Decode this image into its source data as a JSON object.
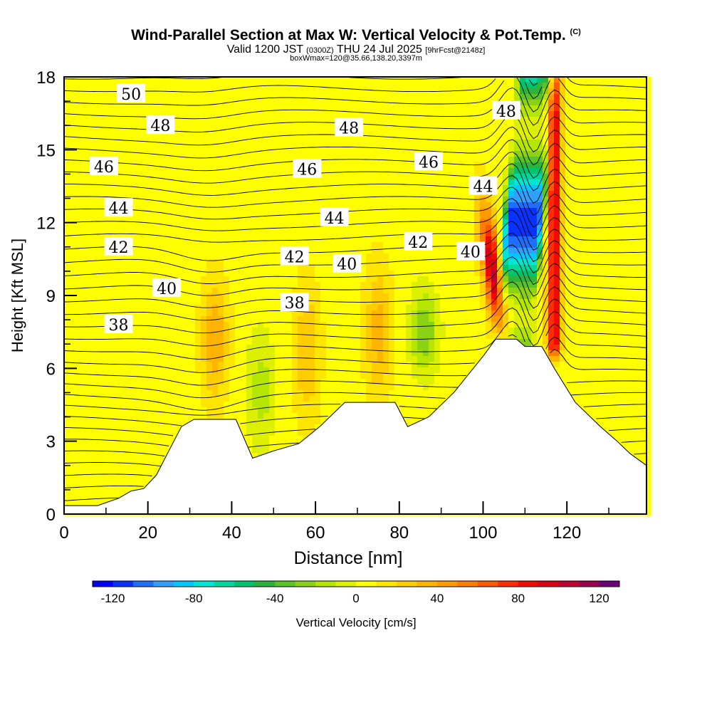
{
  "header": {
    "title": "Wind-Parallel Section at Max W: Vertical Velocity & Pot.Temp.",
    "copyright": "(C)",
    "valid_prefix": "Valid 1200 JST",
    "valid_utc": "(0300Z)",
    "valid_date": "THU 24 Jul 2025",
    "forecast": "[9hrFcst@2148z]",
    "box_info": "boxWmax=120@35.66,138.20,3397m"
  },
  "chart_data": {
    "type": "heatmap",
    "xlabel": "Distance [nm]",
    "ylabel": "Height [Kft MSL]",
    "xlim": [
      0,
      139
    ],
    "ylim": [
      0,
      18
    ],
    "x_ticks": [
      0,
      20,
      40,
      60,
      80,
      100,
      120
    ],
    "y_ticks": [
      0,
      3,
      6,
      9,
      12,
      15,
      18
    ],
    "colorbar": {
      "label": "Vertical Velocity [cm/s]",
      "range": [
        -130,
        130
      ],
      "tick_values": [
        -120,
        -80,
        -40,
        0,
        40,
        80,
        120
      ],
      "tick_labels": [
        "-120",
        "-80",
        "-40",
        "0",
        "40",
        "80",
        "120"
      ],
      "bin_edges": [
        -130,
        -120,
        -110,
        -100,
        -90,
        -80,
        -70,
        -60,
        -50,
        -40,
        -30,
        -20,
        -10,
        0,
        10,
        20,
        30,
        40,
        50,
        60,
        70,
        80,
        90,
        100,
        110,
        120,
        130
      ],
      "colors": [
        "#0000ff",
        "#0a32ff",
        "#1e6eff",
        "#2fa0ff",
        "#00c8ff",
        "#00e6d2",
        "#00d7a0",
        "#00c36e",
        "#2db43c",
        "#5ac328",
        "#8cd214",
        "#b4e600",
        "#dcf000",
        "#ffff00",
        "#ffe600",
        "#ffcd00",
        "#ffb400",
        "#ff9b00",
        "#ff7d00",
        "#ff5a00",
        "#ff2d00",
        "#f00a00",
        "#dc0014",
        "#be0032",
        "#9b0050",
        "#6e0078"
      ]
    },
    "terrain_kft": [
      [
        0,
        0.35
      ],
      [
        8,
        0.35
      ],
      [
        13,
        0.65
      ],
      [
        16,
        0.95
      ],
      [
        19,
        1.05
      ],
      [
        22,
        1.6
      ],
      [
        25,
        2.6
      ],
      [
        28,
        3.6
      ],
      [
        31,
        3.9
      ],
      [
        41,
        3.9
      ],
      [
        45,
        2.3
      ],
      [
        50,
        2.6
      ],
      [
        56,
        2.9
      ],
      [
        61,
        3.6
      ],
      [
        67,
        4.6
      ],
      [
        79,
        4.6
      ],
      [
        82,
        3.6
      ],
      [
        87,
        4.0
      ],
      [
        93,
        5.0
      ],
      [
        100,
        6.5
      ],
      [
        103,
        7.2
      ],
      [
        108,
        7.2
      ],
      [
        110,
        6.9
      ],
      [
        114,
        6.9
      ],
      [
        117,
        6.0
      ],
      [
        122,
        4.6
      ],
      [
        128,
        3.6
      ],
      [
        132,
        3.0
      ],
      [
        135,
        2.5
      ],
      [
        139,
        2.0
      ]
    ],
    "vertical_velocity_features": [
      {
        "x": 36,
        "y_range": [
          5,
          9.4
        ],
        "peak_cm_s": 35,
        "sign": "up"
      },
      {
        "x": 47,
        "y_range": [
          3,
          7.2
        ],
        "peak_cm_s": -20,
        "sign": "down"
      },
      {
        "x": 58,
        "y_range": [
          4,
          9.4
        ],
        "peak_cm_s": 25,
        "sign": "up"
      },
      {
        "x": 75,
        "y_range": [
          5,
          10
        ],
        "peak_cm_s": 30,
        "sign": "up"
      },
      {
        "x": 86,
        "y_range": [
          6,
          9
        ],
        "peak_cm_s": -35,
        "sign": "down"
      },
      {
        "x": 103,
        "y_range": [
          7.5,
          12.5
        ],
        "peak_cm_s": 100,
        "sign": "up"
      },
      {
        "x": 109,
        "y_range": [
          6.8,
          18
        ],
        "peak_cm_s": -120,
        "sign": "down"
      },
      {
        "x": 117,
        "y_range": [
          7,
          18
        ],
        "peak_cm_s": 90,
        "sign": "up"
      }
    ],
    "theta_labels": [
      {
        "text": "50",
        "x": 16,
        "y": 17.3
      },
      {
        "text": "48",
        "x": 23,
        "y": 16.0
      },
      {
        "text": "48",
        "x": 68,
        "y": 15.9
      },
      {
        "text": "48",
        "x": 105.5,
        "y": 16.6
      },
      {
        "text": "46",
        "x": 9.5,
        "y": 14.3
      },
      {
        "text": "46",
        "x": 58,
        "y": 14.2
      },
      {
        "text": "46",
        "x": 87,
        "y": 14.5
      },
      {
        "text": "44",
        "x": 13,
        "y": 12.6
      },
      {
        "text": "44",
        "x": 64.5,
        "y": 12.2
      },
      {
        "text": "44",
        "x": 100,
        "y": 13.5
      },
      {
        "text": "42",
        "x": 13,
        "y": 11.0
      },
      {
        "text": "42",
        "x": 55,
        "y": 10.6
      },
      {
        "text": "42",
        "x": 84.5,
        "y": 11.2
      },
      {
        "text": "42",
        "x": 55,
        "y": 10.6
      },
      {
        "text": "40",
        "x": 24.5,
        "y": 9.3
      },
      {
        "text": "40",
        "x": 67.5,
        "y": 10.3
      },
      {
        "text": "40",
        "x": 97,
        "y": 10.8
      },
      {
        "text": "38",
        "x": 13,
        "y": 7.8
      },
      {
        "text": "38",
        "x": 55,
        "y": 8.7
      }
    ]
  }
}
